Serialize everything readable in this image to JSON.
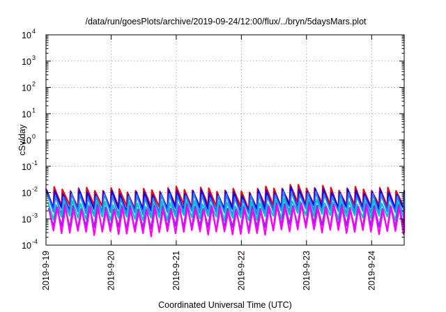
{
  "chart_data": {
    "type": "line",
    "title": "/data/run/goesPlots/archive/2019-09-24/12:00/flux/../bryn/5daysMars.plot",
    "xlabel": "Coordinated Universal Time (UTC)",
    "ylabel": "cSv/day",
    "yscale": "log",
    "ylim": [
      0.0001,
      10000
    ],
    "xlim": [
      0,
      5.5
    ],
    "x_ticks": [
      {
        "value": 0,
        "label": "2019-9-19"
      },
      {
        "value": 1,
        "label": "2019-9-20"
      },
      {
        "value": 2,
        "label": "2019-9-21"
      },
      {
        "value": 3,
        "label": "2019-9-22"
      },
      {
        "value": 4,
        "label": "2019-9-23"
      },
      {
        "value": 5,
        "label": "2019-9-24"
      }
    ],
    "y_ticks": [
      {
        "value": 0.0001,
        "base": "10",
        "exp": "-4"
      },
      {
        "value": 0.001,
        "base": "10",
        "exp": "-3"
      },
      {
        "value": 0.01,
        "base": "10",
        "exp": "-2"
      },
      {
        "value": 0.1,
        "base": "10",
        "exp": "-1"
      },
      {
        "value": 1,
        "base": "10",
        "exp": "0"
      },
      {
        "value": 10,
        "base": "10",
        "exp": "1"
      },
      {
        "value": 100,
        "base": "10",
        "exp": "2"
      },
      {
        "value": 1000,
        "base": "10",
        "exp": "3"
      },
      {
        "value": 10000,
        "base": "10",
        "exp": "4"
      }
    ],
    "grid": true,
    "sawtooth_period_days": 0.125,
    "series": [
      {
        "color": "#ff0000",
        "peak": 0.014,
        "trough": 0.0028
      },
      {
        "color": "#0000ff",
        "peak": 0.011,
        "trough": 0.0022
      },
      {
        "color": "#2a7fff",
        "peak": 0.008,
        "trough": 0.0016
      },
      {
        "color": "#00c8c8",
        "peak": 0.0042,
        "trough": 0.0011
      },
      {
        "color": "#8a2be2",
        "peak": 0.003,
        "trough": 0.00045
      },
      {
        "color": "#ff00ff",
        "peak": 0.0026,
        "trough": 0.0003
      }
    ],
    "modulation": [
      {
        "x": 0.0,
        "factor": 1.0
      },
      {
        "x": 0.8,
        "factor": 0.95
      },
      {
        "x": 1.5,
        "factor": 0.85
      },
      {
        "x": 2.0,
        "factor": 1.05
      },
      {
        "x": 2.8,
        "factor": 0.9
      },
      {
        "x": 3.0,
        "factor": 0.8
      },
      {
        "x": 3.3,
        "factor": 1.0
      },
      {
        "x": 3.8,
        "factor": 1.3
      },
      {
        "x": 4.4,
        "factor": 1.05
      },
      {
        "x": 5.0,
        "factor": 1.0
      },
      {
        "x": 5.5,
        "factor": 0.95
      }
    ]
  }
}
